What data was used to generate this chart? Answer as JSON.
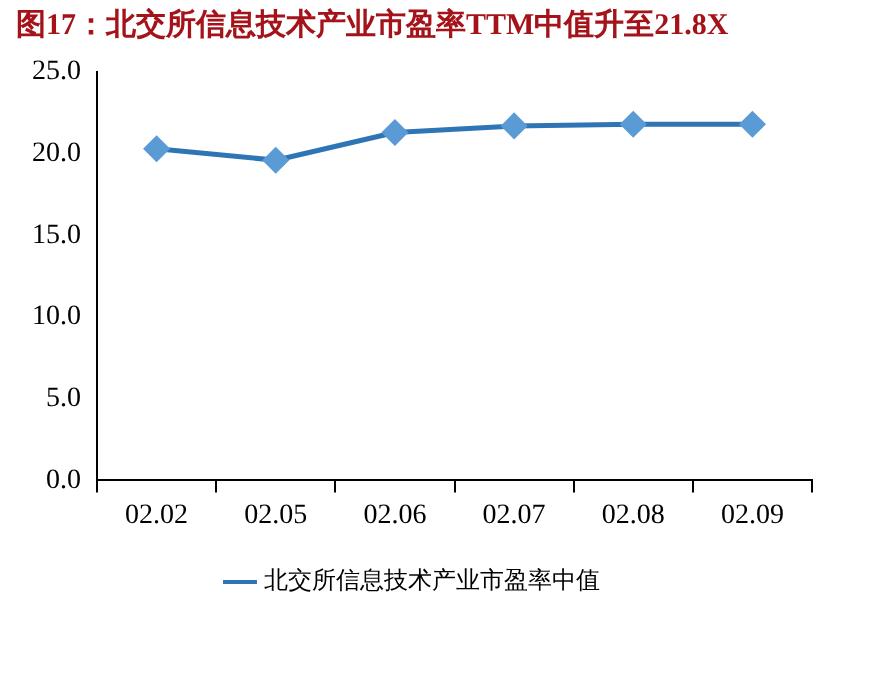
{
  "chart_data": {
    "type": "line",
    "title": "图17：北交所信息技术产业市盈率TTM中值升至21.8X",
    "categories": [
      "02.02",
      "02.05",
      "02.06",
      "02.07",
      "02.08",
      "02.09"
    ],
    "series": [
      {
        "name": "北交所信息技术产业市盈率中值",
        "color": "#2e75b6",
        "values": [
          20.3,
          19.6,
          21.3,
          21.7,
          21.8,
          21.8
        ]
      }
    ],
    "ylim": [
      0,
      25
    ],
    "yticks": [
      {
        "value": 0,
        "label": "0.0"
      },
      {
        "value": 5,
        "label": "5.0"
      },
      {
        "value": 10,
        "label": "10.0"
      },
      {
        "value": 15,
        "label": "15.0"
      },
      {
        "value": 20,
        "label": "20.0"
      },
      {
        "value": 25,
        "label": "25.0"
      }
    ],
    "grid": false,
    "legend": "bottom",
    "marker": "diamond",
    "line_style": "solid"
  }
}
